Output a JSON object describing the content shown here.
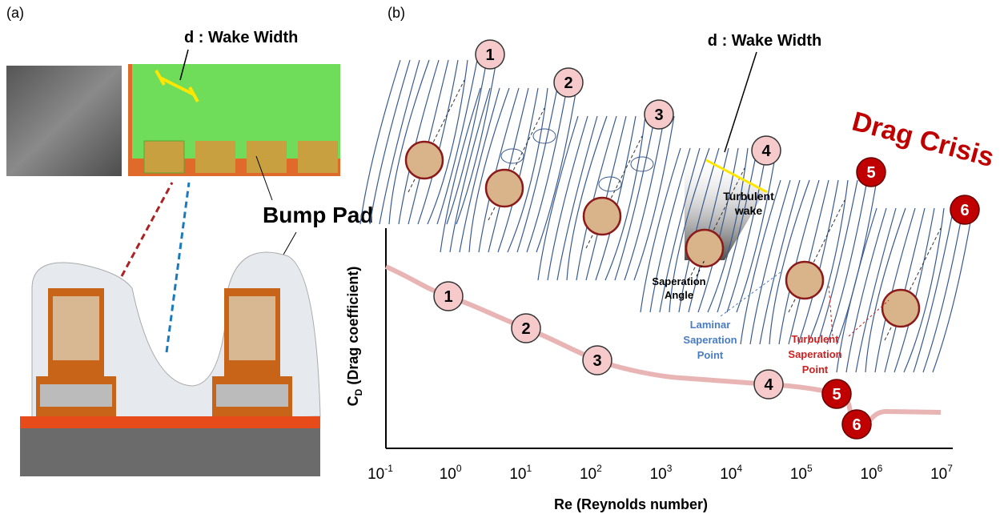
{
  "panel_a": {
    "label": "(a)",
    "wake_width": "d : Wake Width",
    "bump_pad": "Bump Pad"
  },
  "panel_b": {
    "label": "(b)",
    "wake_width": "d : Wake Width",
    "drag_crisis": "Drag Crisis",
    "regimes": [
      "1",
      "2",
      "3",
      "4",
      "5",
      "6"
    ],
    "turbulent_wake": [
      "Turbulent",
      "wake"
    ],
    "separation_angle": [
      "Saperation",
      "Angle"
    ],
    "laminar_point": [
      "Laminar",
      "Saperation",
      "Point"
    ],
    "turbulent_point": [
      "Turbulent",
      "Saperation",
      "Point"
    ],
    "y_axis_label": {
      "main": "C",
      "sub": "D",
      "rest": " (Drag coefficient)"
    },
    "x_axis_label": "Re (Reynolds number)",
    "x_ticks": [
      {
        "base": "10",
        "exp": "-1"
      },
      {
        "base": "10",
        "exp": "0"
      },
      {
        "base": "10",
        "exp": "1"
      },
      {
        "base": "10",
        "exp": "2"
      },
      {
        "base": "10",
        "exp": "3"
      },
      {
        "base": "10",
        "exp": "4"
      },
      {
        "base": "10",
        "exp": "5"
      },
      {
        "base": "10",
        "exp": "6"
      },
      {
        "base": "10",
        "exp": "7"
      }
    ]
  }
}
